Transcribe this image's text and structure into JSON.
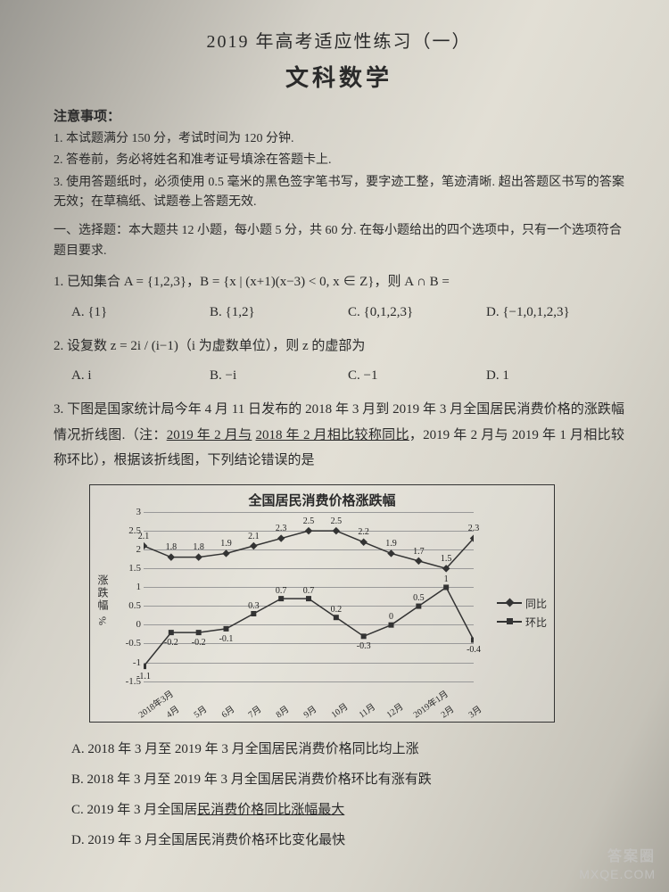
{
  "header": {
    "main_title": "2019 年高考适应性练习（一）",
    "sub_title": "文科数学"
  },
  "notice": {
    "header": "注意事项：",
    "items": [
      "1. 本试题满分 150 分，考试时间为 120 分钟.",
      "2. 答卷前，务必将姓名和准考证号填涂在答题卡上.",
      "3. 使用答题纸时，必须使用 0.5 毫米的黑色签字笔书写，要字迹工整，笔迹清晰. 超出答题区书写的答案无效；在草稿纸、试题卷上答题无效."
    ]
  },
  "section1": {
    "header": "一、选择题：本大题共 12 小题，每小题 5 分，共 60 分. 在每小题给出的四个选项中，只有一个选项符合题目要求."
  },
  "q1": {
    "text": "1. 已知集合 A = {1,2,3}，B = {x | (x+1)(x−3) < 0, x ∈ Z}，则 A ∩ B =",
    "options": {
      "A": "A. {1}",
      "B": "B. {1,2}",
      "C": "C. {0,1,2,3}",
      "D": "D. {−1,0,1,2,3}"
    }
  },
  "q2": {
    "text": "2. 设复数 z = 2i / (i−1)（i 为虚数单位），则 z 的虚部为",
    "options": {
      "A": "A. i",
      "B": "B. −i",
      "C": "C. −1",
      "D": "D. 1"
    }
  },
  "q3": {
    "text_before": "3. 下图是国家统计局今年 4 月 11 日发布的 2018 年 3 月到 2019 年 3 月全国居民消费价格的涨跌幅情况折线图.（注：",
    "text_underline1": "2019 年 2 月与",
    "text_mid": " ",
    "text_underline2": "2018 年 2 月相比较称同比",
    "text_after1": "，2019 年 2 月与 2019 年 1 月相比较称环比），根据该折线图，下列结论错误的是",
    "answers": {
      "A": "A. 2018 年 3 月至 2019 年 3 月全国居民消费价格同比均上涨",
      "B": "B. 2018 年 3 月至 2019 年 3 月全国居民消费价格环比有涨有跌",
      "C": "C. 2019 年 3 月全国居民消费价格同比涨幅最大",
      "D": "D. 2019 年 3 月全国居民消费价格环比变化最快"
    }
  },
  "chart": {
    "title": "全国居民消费价格涨跌幅",
    "type": "line",
    "y_label": "涨跌幅 %",
    "ylim": [
      -1.5,
      3
    ],
    "ytick_step": 0.5,
    "yticks": [
      -1.5,
      -1,
      -0.5,
      0,
      0.5,
      1,
      1.5,
      2,
      2.5,
      3
    ],
    "categories": [
      "2018年3月",
      "4月",
      "5月",
      "6月",
      "7月",
      "8月",
      "9月",
      "10月",
      "11月",
      "12月",
      "2019年1月",
      "2月",
      "3月"
    ],
    "series": [
      {
        "name": "同比",
        "marker": "diamond",
        "color": "#333333",
        "values": [
          2.1,
          1.8,
          1.8,
          1.9,
          2.1,
          2.3,
          2.5,
          2.5,
          2.2,
          1.9,
          1.7,
          1.5,
          2.3
        ]
      },
      {
        "name": "环比",
        "marker": "square",
        "color": "#333333",
        "values": [
          -1.1,
          -0.2,
          -0.2,
          -0.1,
          0.3,
          0.7,
          0.7,
          0.2,
          -0.3,
          0.0,
          0.5,
          1.0,
          -0.4
        ]
      }
    ],
    "background_color": "transparent",
    "grid_color": "#999999",
    "line_width": 1.5,
    "marker_size": 6,
    "title_fontsize": 15,
    "label_fontsize": 12
  },
  "watermark": {
    "line1": "答案圈",
    "line2": "MXQE.COM"
  }
}
